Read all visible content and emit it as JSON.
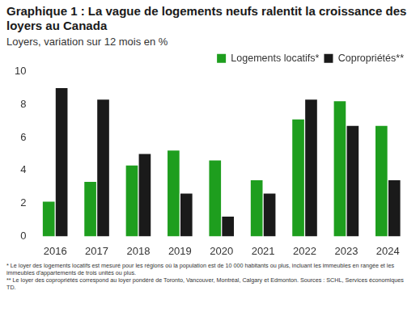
{
  "chart_data": {
    "type": "bar",
    "title": "Graphique 1 : La vague de logements neufs ralentit la croissance des loyers au Canada",
    "subtitle": "Loyers, variation sur 12 mois en %",
    "categories": [
      "2016",
      "2017",
      "2018",
      "2019",
      "2020",
      "2021",
      "2022",
      "2023",
      "2024"
    ],
    "series": [
      {
        "name": "Logements locatifs*",
        "color": "#1e9e1e",
        "values": [
          2.1,
          3.3,
          4.3,
          5.2,
          4.6,
          3.4,
          7.1,
          8.2,
          6.7
        ]
      },
      {
        "name": "Copropriétés**",
        "color": "#1a1a1a",
        "values": [
          9.0,
          8.3,
          5.0,
          2.6,
          1.2,
          2.6,
          8.3,
          6.7,
          3.4
        ]
      }
    ],
    "ylim": [
      0,
      10
    ],
    "yticks": [
      0,
      2,
      4,
      6,
      8,
      10
    ],
    "grid": false,
    "legend": "top-right",
    "footnotes": [
      "* Le loyer des logements locatifs est mesuré pour les régions où la population est de 10 000 habitants ou plus, incluant les immeubles en rangée et les immeubles d'appartements de trois unités ou plus.",
      "** Le loyer des copropriétés correspond au loyer pondéré de Toronto, Vancouver, Montréal, Calgary et Edmonton. Sources : SCHL, Services économiques TD."
    ]
  }
}
